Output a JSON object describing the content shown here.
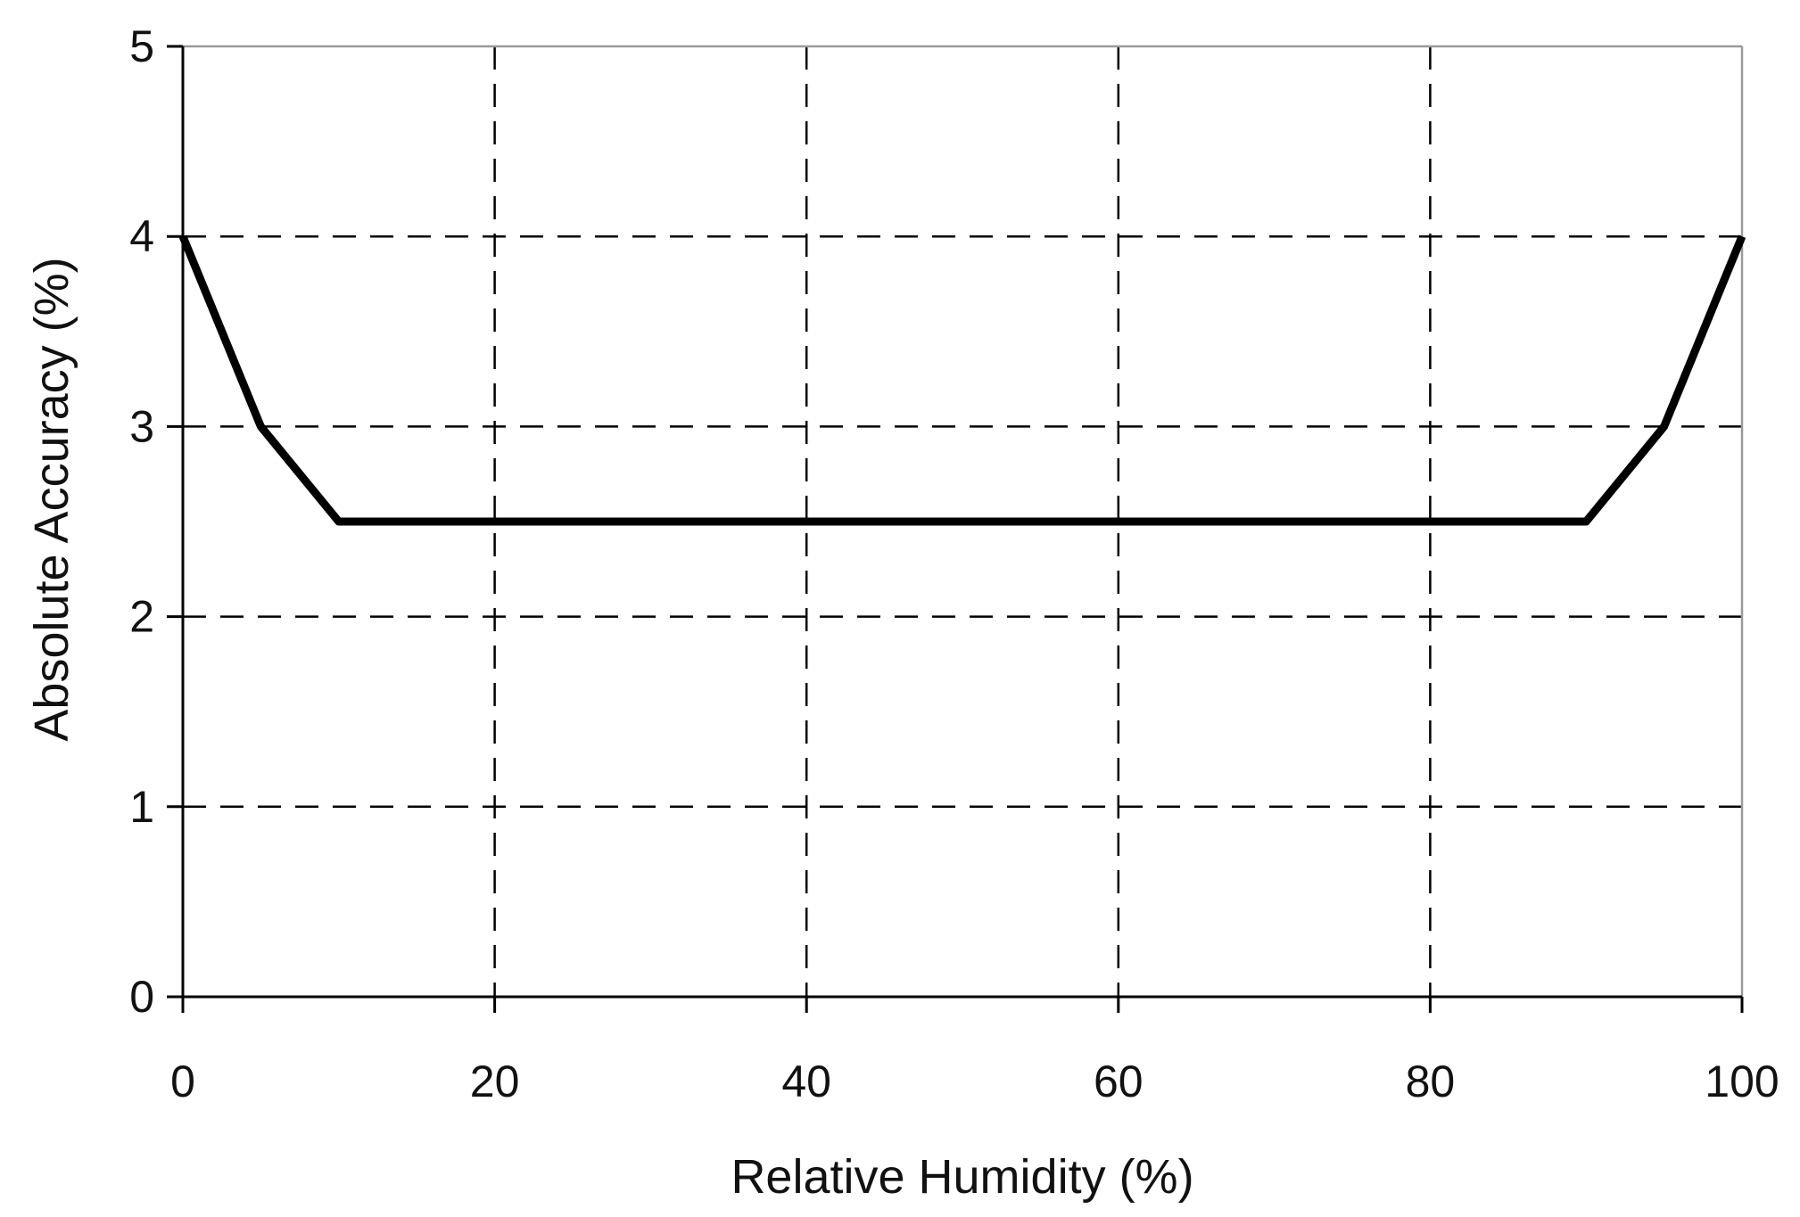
{
  "chart_data": {
    "type": "line",
    "title": "",
    "xlabel": "Relative Humidity (%)",
    "ylabel": "Absolute Accuracy (%)",
    "xlim": [
      0,
      100
    ],
    "ylim": [
      0,
      5
    ],
    "x_ticks": [
      "0",
      "20",
      "40",
      "60",
      "80",
      "100"
    ],
    "y_ticks": [
      "0",
      "1",
      "2",
      "3",
      "4",
      "5"
    ],
    "grid": true,
    "grid_style": "dashed",
    "legend": "none",
    "series": [
      {
        "x": [
          0,
          5,
          10,
          90,
          95,
          100
        ],
        "y": [
          4,
          3,
          2.5,
          2.5,
          3,
          4
        ],
        "color": "#000000"
      }
    ]
  }
}
